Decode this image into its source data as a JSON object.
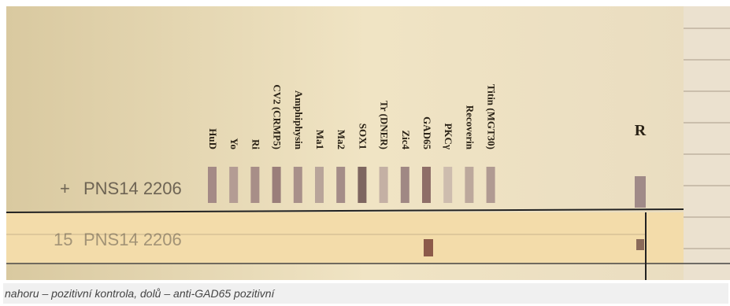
{
  "strip_labels": [
    "HuD",
    "Yo",
    "Ri",
    "CV2 (CRMP5)",
    "Amphiphysin",
    "Ma1",
    "Ma2",
    "SOX1",
    "Tr (DNER)",
    "Zic4",
    "GAD65",
    "PKCγ",
    "Recoverin",
    "Titin (MGT30)"
  ],
  "reference_label": "R",
  "strips": [
    {
      "sign": "+",
      "code": "PNS14 2206"
    },
    {
      "sign": "15",
      "code": "PNS14 2206"
    }
  ],
  "caption": "nahoru – pozitivní kontrola, dolů – anti-GAD65 pozitivní"
}
